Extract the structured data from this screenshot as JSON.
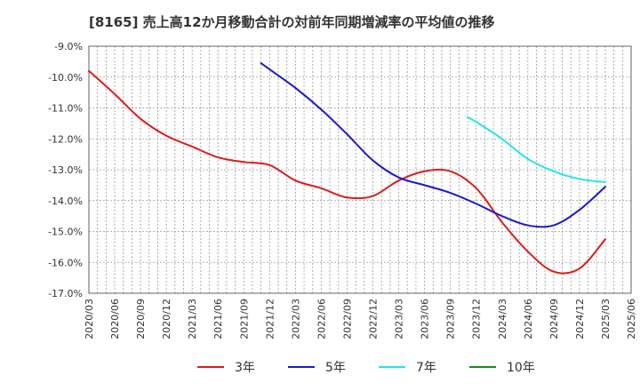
{
  "chart_data": {
    "type": "line",
    "title": "[8165]  売上高12か月移動合計の対前年同期増減率の平均値の推移",
    "xlabel": "",
    "ylabel": "",
    "ylim": [
      -17.0,
      -9.0
    ],
    "yticks": [
      "-9.0%",
      "-10.0%",
      "-11.0%",
      "-12.0%",
      "-13.0%",
      "-14.0%",
      "-15.0%",
      "-16.0%",
      "-17.0%"
    ],
    "xticks": [
      "2020/03",
      "2020/06",
      "2020/09",
      "2020/12",
      "2021/03",
      "2021/06",
      "2021/09",
      "2021/12",
      "2022/03",
      "2022/06",
      "2022/09",
      "2022/12",
      "2023/03",
      "2023/06",
      "2023/09",
      "2023/12",
      "2024/03",
      "2024/06",
      "2024/09",
      "2024/12",
      "2025/03",
      "2025/06"
    ],
    "grid": true,
    "legend_position": "bottom",
    "series": [
      {
        "name": "3年",
        "color": "#dd1c1c",
        "x": [
          "2020/03",
          "2020/06",
          "2020/09",
          "2020/12",
          "2021/03",
          "2021/06",
          "2021/09",
          "2021/12",
          "2022/03",
          "2022/06",
          "2022/09",
          "2022/12",
          "2023/03",
          "2023/06",
          "2023/09",
          "2023/12",
          "2024/03",
          "2024/06",
          "2024/09",
          "2024/12",
          "2025/03"
        ],
        "values": [
          -9.8,
          -10.55,
          -11.35,
          -11.9,
          -12.25,
          -12.6,
          -12.75,
          -12.85,
          -13.35,
          -13.6,
          -13.9,
          -13.85,
          -13.35,
          -13.05,
          -13.05,
          -13.6,
          -14.7,
          -15.65,
          -16.3,
          -16.2,
          -15.25
        ]
      },
      {
        "name": "5年",
        "color": "#1a1acc",
        "x": [
          "2021/11",
          "2021/12",
          "2022/03",
          "2022/06",
          "2022/09",
          "2022/12",
          "2023/03",
          "2023/06",
          "2023/09",
          "2023/12",
          "2024/03",
          "2024/06",
          "2024/09",
          "2024/12",
          "2025/03"
        ],
        "values": [
          -9.55,
          -9.75,
          -10.35,
          -11.05,
          -11.85,
          -12.7,
          -13.25,
          -13.5,
          -13.75,
          -14.1,
          -14.5,
          -14.8,
          -14.8,
          -14.3,
          -13.55
        ]
      },
      {
        "name": "7年",
        "color": "#22e6e6",
        "x": [
          "2023/11",
          "2023/12",
          "2024/03",
          "2024/06",
          "2024/09",
          "2024/12",
          "2025/03"
        ],
        "values": [
          -11.3,
          -11.45,
          -12.0,
          -12.65,
          -13.05,
          -13.3,
          -13.4
        ]
      },
      {
        "name": "10年",
        "color": "#1a8a1a",
        "x": [],
        "values": []
      }
    ]
  }
}
